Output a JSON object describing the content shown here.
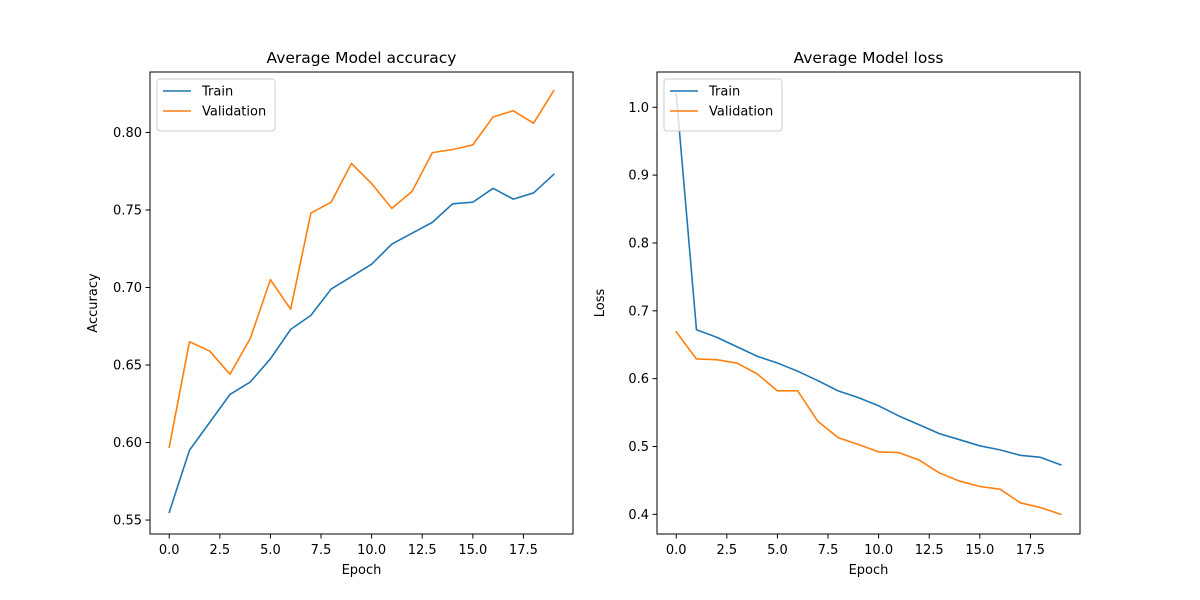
{
  "colors": {
    "train": "#1f77b4",
    "validation": "#ff7f0e"
  },
  "chart_data": [
    {
      "type": "line",
      "title": "Average Model accuracy",
      "xlabel": "Epoch",
      "ylabel": "Accuracy",
      "xlim": [
        -0.95,
        19.95
      ],
      "ylim": [
        0.541,
        0.839
      ],
      "xticks": [
        0.0,
        2.5,
        5.0,
        7.5,
        10.0,
        12.5,
        15.0,
        17.5
      ],
      "xtick_labels": [
        "0.0",
        "2.5",
        "5.0",
        "7.5",
        "10.0",
        "12.5",
        "15.0",
        "17.5"
      ],
      "yticks": [
        0.55,
        0.6,
        0.65,
        0.7,
        0.75,
        0.8
      ],
      "ytick_labels": [
        "0.55",
        "0.60",
        "0.65",
        "0.70",
        "0.75",
        "0.80"
      ],
      "grid": false,
      "legend": "upper left",
      "x": [
        0,
        1,
        2,
        3,
        4,
        5,
        6,
        7,
        8,
        9,
        10,
        11,
        12,
        13,
        14,
        15,
        16,
        17,
        18,
        19
      ],
      "series": [
        {
          "name": "Train",
          "color": "#1f77b4",
          "values": [
            0.555,
            0.595,
            0.613,
            0.631,
            0.639,
            0.654,
            0.673,
            0.682,
            0.699,
            0.707,
            0.715,
            0.728,
            0.735,
            0.742,
            0.754,
            0.755,
            0.764,
            0.757,
            0.761,
            0.773
          ]
        },
        {
          "name": "Validation",
          "color": "#ff7f0e",
          "values": [
            0.597,
            0.665,
            0.659,
            0.644,
            0.667,
            0.705,
            0.686,
            0.748,
            0.755,
            0.78,
            0.767,
            0.751,
            0.762,
            0.787,
            0.789,
            0.792,
            0.81,
            0.814,
            0.806,
            0.827
          ]
        }
      ]
    },
    {
      "type": "line",
      "title": "Average Model loss",
      "xlabel": "Epoch",
      "ylabel": "Loss",
      "xlim": [
        -0.95,
        19.95
      ],
      "ylim": [
        0.371,
        1.052
      ],
      "xticks": [
        0.0,
        2.5,
        5.0,
        7.5,
        10.0,
        12.5,
        15.0,
        17.5
      ],
      "xtick_labels": [
        "0.0",
        "2.5",
        "5.0",
        "7.5",
        "10.0",
        "12.5",
        "15.0",
        "17.5"
      ],
      "yticks": [
        0.4,
        0.5,
        0.6,
        0.7,
        0.8,
        0.9,
        1.0
      ],
      "ytick_labels": [
        "0.4",
        "0.5",
        "0.6",
        "0.7",
        "0.8",
        "0.9",
        "1.0"
      ],
      "grid": false,
      "legend": "upper left",
      "x": [
        0,
        1,
        2,
        3,
        4,
        5,
        6,
        7,
        8,
        9,
        10,
        11,
        12,
        13,
        14,
        15,
        16,
        17,
        18,
        19
      ],
      "series": [
        {
          "name": "Train",
          "color": "#1f77b4",
          "values": [
            1.02,
            0.672,
            0.661,
            0.647,
            0.633,
            0.623,
            0.611,
            0.597,
            0.582,
            0.572,
            0.56,
            0.545,
            0.532,
            0.519,
            0.51,
            0.501,
            0.495,
            0.487,
            0.484,
            0.473
          ]
        },
        {
          "name": "Validation",
          "color": "#ff7f0e",
          "values": [
            0.669,
            0.629,
            0.628,
            0.623,
            0.607,
            0.582,
            0.582,
            0.537,
            0.513,
            0.503,
            0.492,
            0.491,
            0.48,
            0.461,
            0.449,
            0.441,
            0.437,
            0.417,
            0.41,
            0.4
          ]
        }
      ]
    }
  ]
}
